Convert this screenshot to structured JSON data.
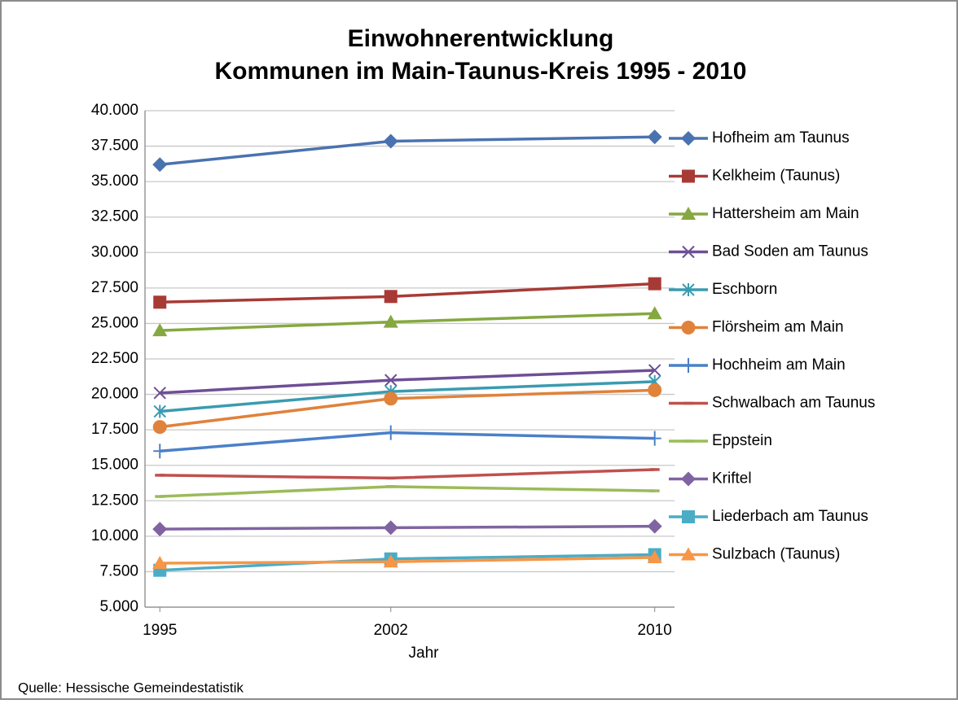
{
  "chart_data": {
    "type": "line",
    "title": [
      "Einwohnerentwicklung",
      "Kommunen im Main-Taunus-Kreis  1995 - 2010"
    ],
    "x_label": "Jahr",
    "source": "Quelle: Hessische Gemeindestatistik",
    "x": [
      1995,
      2002,
      2010
    ],
    "xlim": [
      1994.55,
      2010.6
    ],
    "xticks": [
      1995,
      2002,
      2010
    ],
    "ylim": [
      5000,
      40000
    ],
    "yticks": [
      {
        "value": 5000,
        "label": "5.000"
      },
      {
        "value": 7500,
        "label": "7.500"
      },
      {
        "value": 10000,
        "label": "10.000"
      },
      {
        "value": 12500,
        "label": "12.500"
      },
      {
        "value": 15000,
        "label": "15.000"
      },
      {
        "value": 17500,
        "label": "17.500"
      },
      {
        "value": 20000,
        "label": "20.000"
      },
      {
        "value": 22500,
        "label": "22.500"
      },
      {
        "value": 25000,
        "label": "25.000"
      },
      {
        "value": 27500,
        "label": "27.500"
      },
      {
        "value": 30000,
        "label": "30.000"
      },
      {
        "value": 32500,
        "label": "32.500"
      },
      {
        "value": 35000,
        "label": "35.000"
      },
      {
        "value": 37500,
        "label": "37.500"
      },
      {
        "value": 40000,
        "label": "40.000"
      }
    ],
    "grid": true,
    "legend": "right",
    "series": [
      {
        "name": "Hofheim am Taunus",
        "color": "#4a72b0",
        "marker": "diamond",
        "values": [
          36200,
          37850,
          38150
        ]
      },
      {
        "name": "Kelkheim (Taunus)",
        "color": "#a83a36",
        "marker": "square",
        "values": [
          26500,
          26900,
          27800
        ]
      },
      {
        "name": "Hattersheim am Main",
        "color": "#85a840",
        "marker": "triangle",
        "values": [
          24500,
          25100,
          25700
        ]
      },
      {
        "name": "Bad Soden am Taunus",
        "color": "#6e4e96",
        "marker": "x",
        "values": [
          20100,
          21000,
          21700
        ]
      },
      {
        "name": "Eschborn",
        "color": "#3a9bb0",
        "marker": "star",
        "values": [
          18800,
          20200,
          20900
        ]
      },
      {
        "name": "Flörsheim am Main",
        "color": "#e0823a",
        "marker": "circle",
        "values": [
          17700,
          19700,
          20300
        ]
      },
      {
        "name": "Hochheim am Main",
        "color": "#4a80c8",
        "marker": "plus",
        "values": [
          16000,
          17300,
          16900
        ]
      },
      {
        "name": "Schwalbach am Taunus",
        "color": "#c0504d",
        "marker": "dash",
        "values": [
          14300,
          14100,
          14700
        ]
      },
      {
        "name": "Eppstein",
        "color": "#9bbb59",
        "marker": "dash",
        "values": [
          12800,
          13500,
          13200
        ]
      },
      {
        "name": "Kriftel",
        "color": "#8064a2",
        "marker": "diamond",
        "values": [
          10500,
          10600,
          10700
        ]
      },
      {
        "name": "Liederbach am Taunus",
        "color": "#4bacc6",
        "marker": "square",
        "values": [
          7600,
          8400,
          8700
        ]
      },
      {
        "name": "Sulzbach (Taunus)",
        "color": "#f79646",
        "marker": "triangle",
        "values": [
          8100,
          8200,
          8500
        ]
      }
    ]
  }
}
